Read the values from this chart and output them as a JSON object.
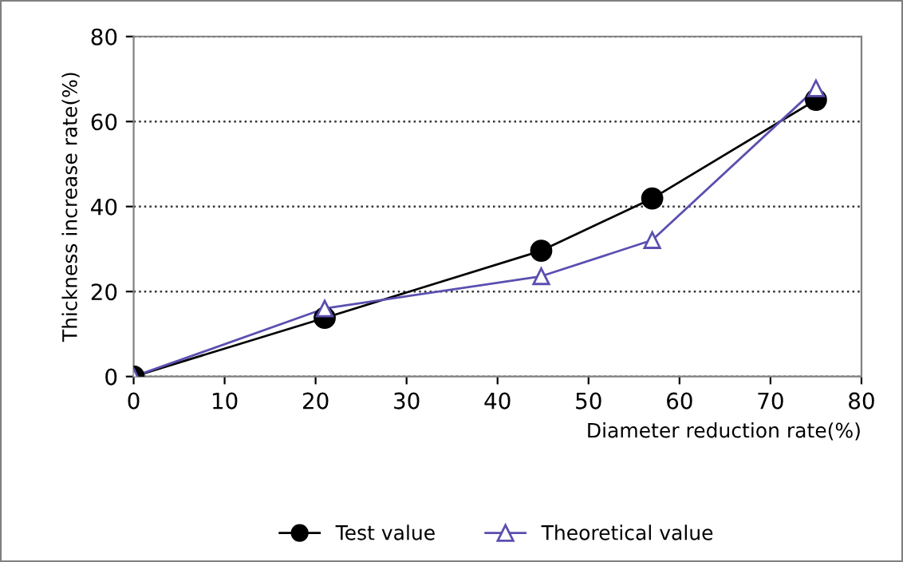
{
  "chart_data": {
    "type": "line",
    "xlabel": "Diameter reduction rate(%)",
    "ylabel": "Thickness increase rate(%)",
    "xlim": [
      0,
      80
    ],
    "xticks": [
      0,
      10,
      20,
      30,
      40,
      50,
      60,
      70,
      80
    ],
    "ylim": [
      0,
      80
    ],
    "yticks": [
      0,
      20,
      40,
      60,
      80
    ],
    "grid": "y",
    "legend": "bottom",
    "line_style": "solid",
    "series": [
      {
        "name": "Test value",
        "color": "#000000",
        "marker": "circle",
        "x": [
          0,
          21,
          44.8,
          57,
          75
        ],
        "values": [
          0,
          13.8,
          29.6,
          41.9,
          65.1
        ]
      },
      {
        "name": "Theoretical value",
        "color": "#5a4fb0",
        "marker": "triangle",
        "x": [
          0,
          21,
          44.8,
          57,
          75
        ],
        "values": [
          0,
          16,
          23.6,
          32.1,
          67.8
        ]
      }
    ]
  }
}
